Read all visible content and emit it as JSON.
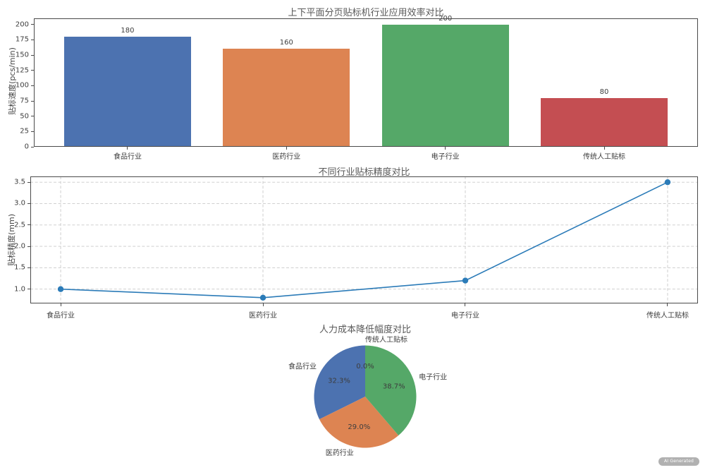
{
  "watermark": {
    "label": "AI Generated"
  },
  "palette": {
    "blue": "#4c72b0",
    "orange": "#dd8452",
    "green": "#55a868",
    "red": "#c44e52",
    "line_blue": "#2b7bb8",
    "grid": "#c9c9c9",
    "spine": "#4a4a4a",
    "text": "#3d3d3d",
    "title": "#585858"
  },
  "chart_data": [
    {
      "type": "bar",
      "title": "上下平面分页贴标机行业应用效率对比",
      "xlabel": "",
      "ylabel": "贴标速度(pcs/min)",
      "categories": [
        "食品行业",
        "医药行业",
        "电子行业",
        "传统人工贴标"
      ],
      "values": [
        180,
        160,
        200,
        80
      ],
      "bar_labels": [
        "180",
        "160",
        "200",
        "80"
      ],
      "colors": [
        "#4c72b0",
        "#dd8452",
        "#55a868",
        "#c44e52"
      ],
      "yticks": [
        0,
        25,
        50,
        75,
        100,
        125,
        150,
        175,
        200
      ],
      "ytick_labels": [
        "0",
        "25",
        "50",
        "75",
        "100",
        "125",
        "150",
        "175",
        "200"
      ],
      "ylim": [
        0,
        210
      ],
      "grid": false,
      "legend": "none"
    },
    {
      "type": "line",
      "title": "不同行业贴标精度对比",
      "xlabel": "",
      "ylabel": "贴标精度(mm)",
      "categories": [
        "食品行业",
        "医药行业",
        "电子行业",
        "传统人工贴标"
      ],
      "values": [
        1.0,
        0.8,
        1.2,
        3.5
      ],
      "color": "#2b7bb8",
      "marker": "circle",
      "yticks": [
        1.0,
        1.5,
        2.0,
        2.5,
        3.0,
        3.5
      ],
      "ytick_labels": [
        "1.0",
        "1.5",
        "2.0",
        "2.5",
        "3.0",
        "3.5"
      ],
      "ylim": [
        0.665,
        3.635
      ],
      "grid": true,
      "grid_style": "dashed",
      "legend": "none"
    },
    {
      "type": "pie",
      "title": "人力成本降低幅度对比",
      "categories": [
        "食品行业",
        "医药行业",
        "电子行业",
        "传统人工贴标"
      ],
      "values": [
        32.3,
        29.0,
        38.7,
        0.0
      ],
      "percent_labels": [
        "32.3%",
        "29.0%",
        "38.7%",
        "0.0%"
      ],
      "colors": [
        "#4c72b0",
        "#dd8452",
        "#55a868",
        "#c44e52"
      ],
      "start_angle": 90,
      "counterclock": true,
      "legend": "none"
    }
  ]
}
